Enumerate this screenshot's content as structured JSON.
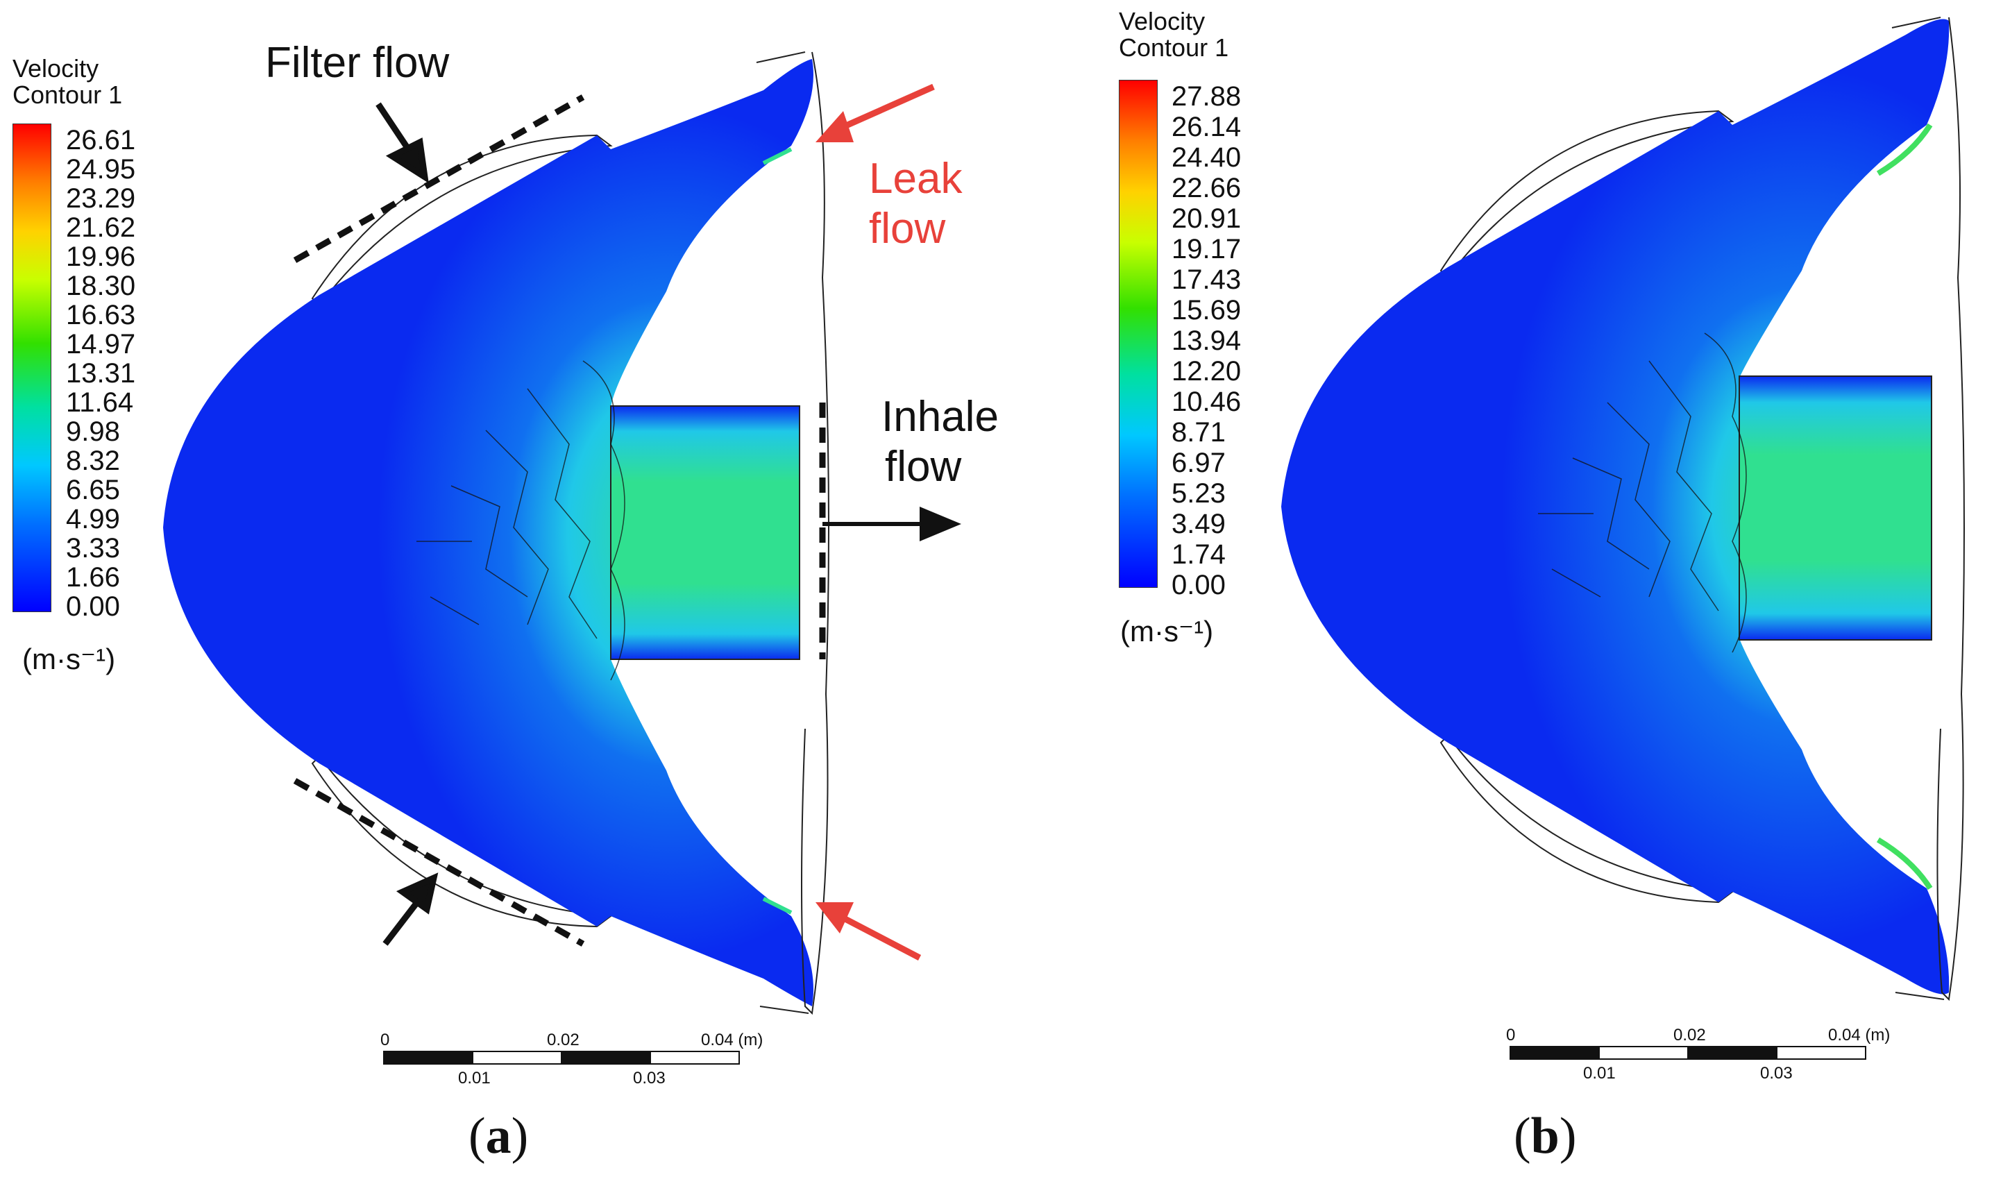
{
  "panels": [
    {
      "id": "a",
      "label": "a",
      "legend": {
        "title_line1": "Velocity",
        "title_line2": "Contour 1",
        "ticks": [
          "26.61",
          "24.95",
          "23.29",
          "21.62",
          "19.96",
          "18.30",
          "16.63",
          "14.97",
          "13.31",
          "11.64",
          "9.98",
          "8.32",
          "6.65",
          "4.99",
          "3.33",
          "1.66",
          "0.00"
        ],
        "unit": "(m·s⁻¹)"
      },
      "annotations": {
        "filter_flow": "Filter flow",
        "leak_line1": "Leak",
        "leak_line2": "flow",
        "inhale_line1": "Inhale",
        "inhale_line2": "flow"
      },
      "scale": {
        "top": [
          "0",
          "0.02",
          "0.04 (m)"
        ],
        "bottom": [
          "0.01",
          "0.03"
        ]
      }
    },
    {
      "id": "b",
      "label": "b",
      "legend": {
        "title_line1": "Velocity",
        "title_line2": "Contour 1",
        "ticks": [
          "27.88",
          "26.14",
          "24.40",
          "22.66",
          "20.91",
          "19.17",
          "17.43",
          "15.69",
          "13.94",
          "12.20",
          "10.46",
          "8.71",
          "6.97",
          "5.23",
          "3.49",
          "1.74",
          "0.00"
        ],
        "unit": "(m·s⁻¹)"
      },
      "scale": {
        "top": [
          "0",
          "0.02",
          "0.04 (m)"
        ],
        "bottom": [
          "0.01",
          "0.03"
        ]
      }
    }
  ],
  "colors": {
    "leak_arrow": "#e8413a",
    "contour_low": "#0a2af0",
    "contour_mid": "#30e090"
  }
}
